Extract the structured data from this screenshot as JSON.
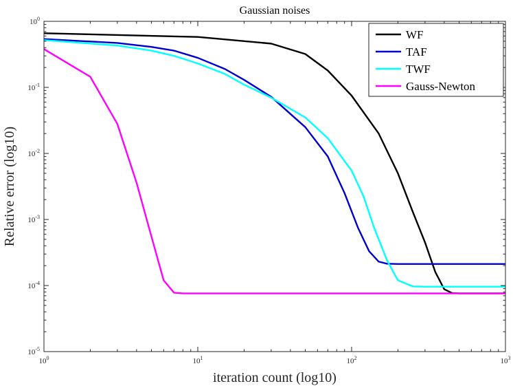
{
  "chart_data": {
    "type": "line",
    "title": "Gaussian noises",
    "xlabel": "iteration count (log10)",
    "ylabel": "Relative error (log10)",
    "xscale": "log",
    "yscale": "log",
    "xlim": [
      1,
      1000
    ],
    "ylim": [
      1e-05,
      1
    ],
    "x_ticks": [
      {
        "base": "10",
        "exp": "0"
      },
      {
        "base": "10",
        "exp": "1"
      },
      {
        "base": "10",
        "exp": "2"
      },
      {
        "base": "10",
        "exp": "3"
      }
    ],
    "y_ticks": [
      {
        "base": "10",
        "exp": "-5"
      },
      {
        "base": "10",
        "exp": "-4"
      },
      {
        "base": "10",
        "exp": "-3"
      },
      {
        "base": "10",
        "exp": "-2"
      },
      {
        "base": "10",
        "exp": "-1"
      },
      {
        "base": "10",
        "exp": "0"
      }
    ],
    "legend_position": "top-right",
    "series": [
      {
        "name": "WF",
        "color": "#000000",
        "points": [
          [
            1,
            0.66
          ],
          [
            10,
            0.58
          ],
          [
            30,
            0.46
          ],
          [
            50,
            0.32
          ],
          [
            70,
            0.18
          ],
          [
            100,
            0.075
          ],
          [
            150,
            0.02
          ],
          [
            200,
            0.005
          ],
          [
            250,
            0.0013
          ],
          [
            300,
            0.00045
          ],
          [
            350,
            0.00016
          ],
          [
            400,
            8.8e-05
          ],
          [
            450,
            7.7e-05
          ],
          [
            500,
            7.6e-05
          ],
          [
            1000,
            7.6e-05
          ]
        ]
      },
      {
        "name": "TAF",
        "color": "#0000CD",
        "points": [
          [
            1,
            0.54
          ],
          [
            3,
            0.47
          ],
          [
            5,
            0.41
          ],
          [
            7,
            0.36
          ],
          [
            10,
            0.28
          ],
          [
            15,
            0.19
          ],
          [
            20,
            0.13
          ],
          [
            30,
            0.072
          ],
          [
            50,
            0.025
          ],
          [
            70,
            0.009
          ],
          [
            90,
            0.0025
          ],
          [
            110,
            0.00075
          ],
          [
            130,
            0.00033
          ],
          [
            150,
            0.00023
          ],
          [
            170,
            0.000214
          ],
          [
            200,
            0.000212
          ],
          [
            1000,
            0.000212
          ]
        ]
      },
      {
        "name": "TWF",
        "color": "#00FFFF",
        "points": [
          [
            1,
            0.52
          ],
          [
            3,
            0.43
          ],
          [
            5,
            0.36
          ],
          [
            7,
            0.3
          ],
          [
            10,
            0.23
          ],
          [
            15,
            0.16
          ],
          [
            20,
            0.11
          ],
          [
            30,
            0.07
          ],
          [
            50,
            0.035
          ],
          [
            70,
            0.017
          ],
          [
            100,
            0.0055
          ],
          [
            120,
            0.0022
          ],
          [
            140,
            0.00075
          ],
          [
            170,
            0.00024
          ],
          [
            200,
            0.00012
          ],
          [
            250,
            9.7e-05
          ],
          [
            300,
            9.6e-05
          ],
          [
            1000,
            9.6e-05
          ]
        ]
      },
      {
        "name": "Gauss-Newton",
        "color": "#FF00FF",
        "points": [
          [
            1,
            0.38
          ],
          [
            2,
            0.145
          ],
          [
            3,
            0.028
          ],
          [
            4,
            0.0036
          ],
          [
            5,
            0.00055
          ],
          [
            6,
            0.00012
          ],
          [
            7,
            7.8e-05
          ],
          [
            8,
            7.6e-05
          ],
          [
            1000,
            7.6e-05
          ]
        ]
      }
    ]
  }
}
